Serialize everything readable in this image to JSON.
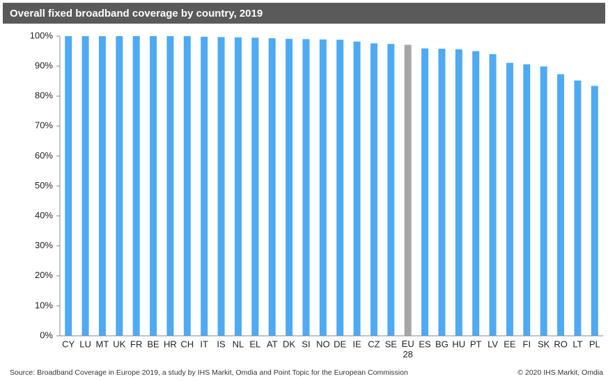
{
  "chart_data": {
    "type": "bar",
    "title": "Overall fixed broadband coverage by country, 2019",
    "source": "Source: Broadband Coverage in Europe 2019, a study by IHS Markit, Omdia and Point Topic for the European Commission",
    "copyright": "© 2020 IHS Markit, Omdia",
    "categories": [
      "CY",
      "LU",
      "MT",
      "UK",
      "FR",
      "BE",
      "HR",
      "CH",
      "IT",
      "IS",
      "NL",
      "EL",
      "AT",
      "DK",
      "SI",
      "NO",
      "DE",
      "IE",
      "CZ",
      "SE",
      "EU 28",
      "ES",
      "BG",
      "HU",
      "PT",
      "LV",
      "EE",
      "FI",
      "SK",
      "RO",
      "LT",
      "PL"
    ],
    "values": [
      100,
      100,
      100,
      100,
      100,
      100,
      100,
      100,
      99.8,
      99.7,
      99.6,
      99.5,
      99.3,
      99.1,
      99,
      98.9,
      98.8,
      98.2,
      97.6,
      97.4,
      97.1,
      95.9,
      95.8,
      95.6,
      95,
      94,
      91.1,
      90.6,
      89.9,
      87.3,
      85.2,
      83.4
    ],
    "colors": [
      "#4eaaf2",
      "#4eaaf2",
      "#4eaaf2",
      "#4eaaf2",
      "#4eaaf2",
      "#4eaaf2",
      "#4eaaf2",
      "#4eaaf2",
      "#4eaaf2",
      "#4eaaf2",
      "#4eaaf2",
      "#4eaaf2",
      "#4eaaf2",
      "#4eaaf2",
      "#4eaaf2",
      "#4eaaf2",
      "#4eaaf2",
      "#4eaaf2",
      "#4eaaf2",
      "#4eaaf2",
      "#a6a6a6",
      "#4eaaf2",
      "#4eaaf2",
      "#4eaaf2",
      "#4eaaf2",
      "#4eaaf2",
      "#4eaaf2",
      "#4eaaf2",
      "#4eaaf2",
      "#4eaaf2",
      "#4eaaf2",
      "#4eaaf2"
    ],
    "ylim": [
      0,
      100
    ],
    "yticks": [
      {
        "value": 0,
        "label": "0%"
      },
      {
        "value": 10,
        "label": "10%"
      },
      {
        "value": 20,
        "label": "20%"
      },
      {
        "value": 30,
        "label": "30%"
      },
      {
        "value": 40,
        "label": "40%"
      },
      {
        "value": 50,
        "label": "50%"
      },
      {
        "value": 60,
        "label": "60%"
      },
      {
        "value": 70,
        "label": "70%"
      },
      {
        "value": 80,
        "label": "80%"
      },
      {
        "value": 90,
        "label": "90%"
      },
      {
        "value": 100,
        "label": "100%"
      }
    ],
    "grid": false
  }
}
